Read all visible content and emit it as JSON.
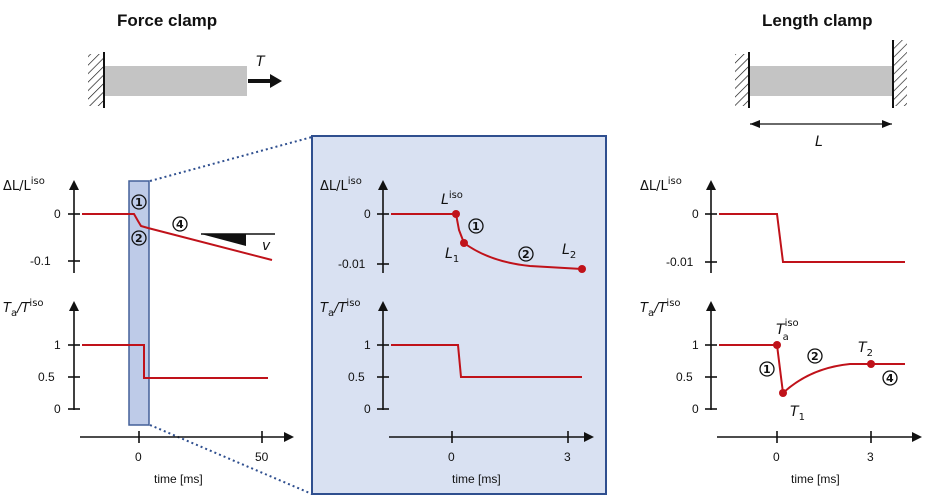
{
  "titles": {
    "force_clamp": "Force clamp",
    "length_clamp": "Length clamp"
  },
  "force_symbol": "T",
  "length_symbol": "L",
  "axis_labels": {
    "dl_main": "ΔL/L",
    "dl_sup": "iso",
    "t_main": "T",
    "t_sub": "a",
    "t_slash": "/T",
    "t_sup": "iso",
    "t_sub2": "a"
  },
  "ticks": {
    "left_dl": [
      "0",
      "-0.1"
    ],
    "inset_dl": [
      "0",
      "-0.01"
    ],
    "right_dl": [
      "0",
      "-0.01"
    ],
    "tension": [
      "1",
      "0.5",
      "0"
    ],
    "left_time": [
      "0",
      "50"
    ],
    "ms_time": [
      "0",
      "3"
    ]
  },
  "xlabels": {
    "left": "time [ms]",
    "inset": "time [ms]",
    "right": "time [ms]"
  },
  "annotations": {
    "c1": "1",
    "c2": "2",
    "c4": "4",
    "velocity": "v",
    "L_iso": "L",
    "L_iso_sup": "iso",
    "L1": "L",
    "L1_sub": "1",
    "L2": "L",
    "L2_sub": "2",
    "T_iso": "T",
    "T_iso_sup": "iso",
    "T_iso_sub": "a",
    "T1": "T",
    "T1_sub": "1",
    "T2": "T",
    "T2_sub": "2"
  },
  "colors": {
    "trace": "#c0121a",
    "inset_bg": "#d9e1f2",
    "inset_border": "#2f4f8f"
  }
}
